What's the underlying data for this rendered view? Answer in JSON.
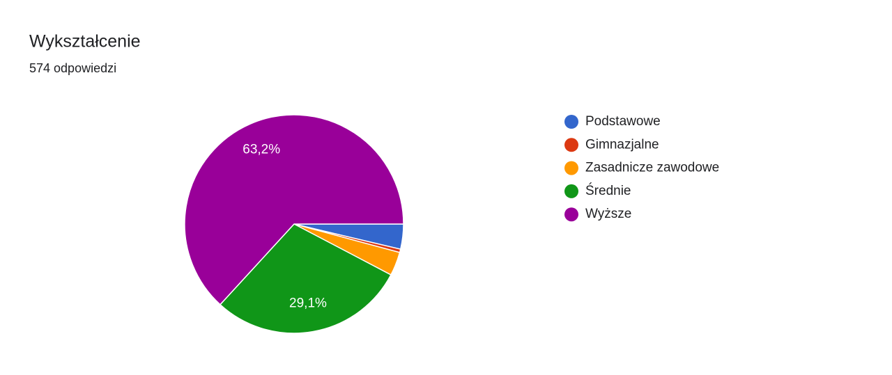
{
  "chart_data": {
    "type": "pie",
    "title": "Wykształcenie",
    "subtitle": "574 odpowiedzi",
    "categories": [
      "Podstawowe",
      "Gimnazjalne",
      "Zasadnicze zawodowe",
      "Średnie",
      "Wyższe"
    ],
    "values": [
      3.7,
      0.5,
      3.5,
      29.1,
      63.2
    ],
    "value_labels": [
      null,
      null,
      null,
      "29,1%",
      "63,2%"
    ],
    "colors": [
      "#3366cc",
      "#dc3912",
      "#ff9900",
      "#109618",
      "#990099"
    ],
    "legend": "right"
  }
}
